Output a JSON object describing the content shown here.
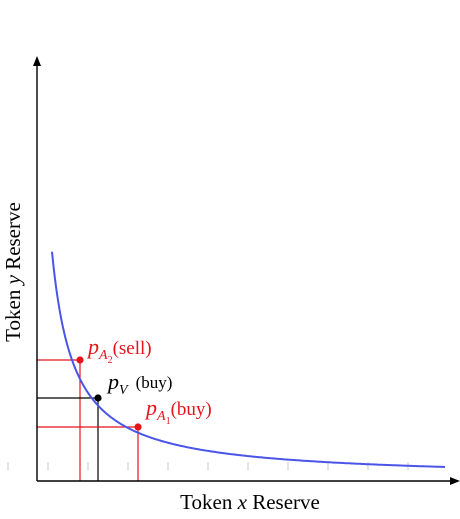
{
  "axes": {
    "x_title_prefix": "Token ",
    "x_title_var": "x",
    "x_title_suffix": " Reserve",
    "y_title_prefix": "Token ",
    "y_title_var": "y",
    "y_title_suffix": " Reserve"
  },
  "points": {
    "a2": {
      "symbol": "p",
      "sub": "A",
      "subsub": "2",
      "tag": "(sell)",
      "color": "#e8121b"
    },
    "v": {
      "symbol": "p",
      "sub": "V",
      "tag": "(buy)",
      "color": "#000000"
    },
    "a1": {
      "symbol": "p",
      "sub": "A",
      "subsub": "1",
      "tag": "(buy)",
      "color": "#e8121b"
    }
  },
  "colors": {
    "curve": "#4a55e8",
    "axis": "#000000",
    "guide_red": "#e8121b",
    "guide_black": "#000000",
    "ticks": "#c8c8c8"
  }
}
